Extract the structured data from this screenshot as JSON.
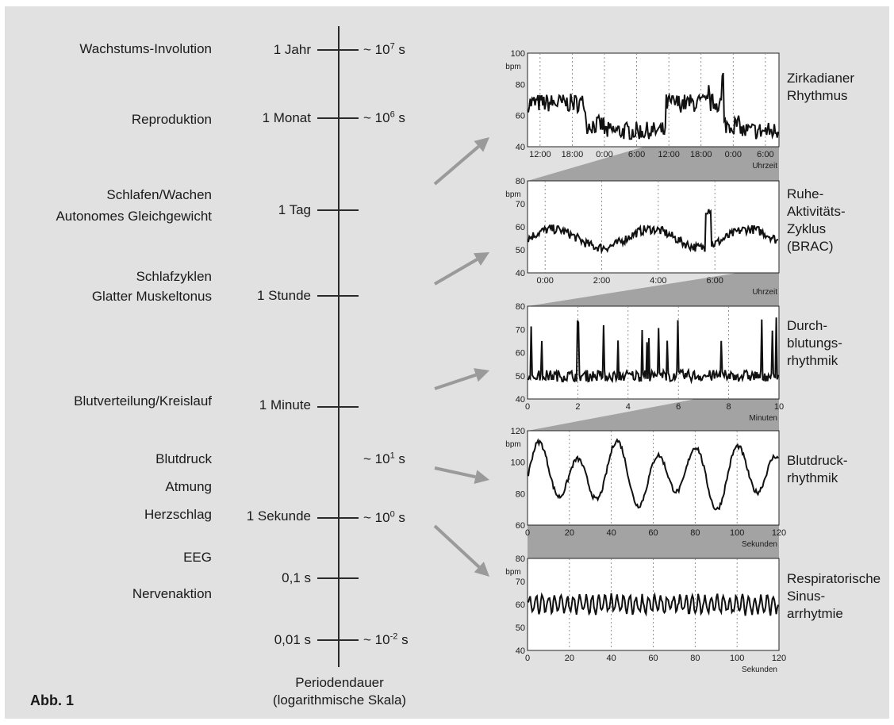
{
  "left_labels": [
    {
      "id": "wachstum",
      "lines": [
        "Wachstums-Involution"
      ]
    },
    {
      "id": "reproduktion",
      "lines": [
        "Reproduktion"
      ]
    },
    {
      "id": "schlafen",
      "lines": [
        "Schlafen/Wachen",
        "Autonomes Gleichgewicht"
      ]
    },
    {
      "id": "schlafzyklen",
      "lines": [
        "Schlafzyklen",
        "Glatter Muskeltonus"
      ]
    },
    {
      "id": "blutverteilung",
      "lines": [
        "Blutverteilung/Kreislauf"
      ]
    },
    {
      "id": "blutdruck",
      "lines": [
        "Blutdruck"
      ]
    },
    {
      "id": "atmung",
      "lines": [
        "Atmung"
      ]
    },
    {
      "id": "herzschlag",
      "lines": [
        "Herzschlag"
      ]
    },
    {
      "id": "eeg",
      "lines": [
        "EEG"
      ]
    },
    {
      "id": "nervenaktion",
      "lines": [
        "Nervenaktion"
      ]
    }
  ],
  "scale_ticks": [
    {
      "label": "1 Jahr",
      "power_base": "~ 10",
      "power_exp": "7",
      "power_unit": " s"
    },
    {
      "label": "1 Monat",
      "power_base": "~ 10",
      "power_exp": "6",
      "power_unit": " s"
    },
    {
      "label": "1 Tag",
      "power_base": "",
      "power_exp": "",
      "power_unit": ""
    },
    {
      "label": "1 Stunde",
      "power_base": "",
      "power_exp": "",
      "power_unit": ""
    },
    {
      "label": "1 Minute",
      "power_base": "",
      "power_exp": "",
      "power_unit": ""
    },
    {
      "label": "",
      "power_base": "~ 10",
      "power_exp": "1",
      "power_unit": " s"
    },
    {
      "label": "1 Sekunde",
      "power_base": "~ 10",
      "power_exp": "0",
      "power_unit": " s"
    },
    {
      "label": "0,1 s",
      "power_base": "",
      "power_exp": "",
      "power_unit": ""
    },
    {
      "label": "0,01 s",
      "power_base": "~ 10",
      "power_exp": "-2",
      "power_unit": " s"
    }
  ],
  "axis_caption": {
    "line1": "Periodendauer",
    "line2": "(logarithmische Skala)"
  },
  "figure_label": "Abb. 1",
  "colors": {
    "panel": "#e1e1e1",
    "plot_bg": "#ffffff",
    "trace": "#111111",
    "arrow": "#9a9a9a",
    "zoom_band": "#a3a3a3"
  },
  "charts": [
    {
      "id": "zirkadian",
      "ylabel": "bpm",
      "ylim": [
        40,
        100
      ],
      "yticks": [
        "40",
        "60",
        "80",
        "100"
      ],
      "xticks": [
        "12:00",
        "18:00",
        "0:00",
        "6:00",
        "12:00",
        "18:00",
        "0:00",
        "6:00"
      ],
      "xlabel": "Uhrzeit",
      "caption": [
        "Zirkadianer",
        "Rhythmus"
      ]
    },
    {
      "id": "brac",
      "ylabel": "bpm",
      "ylim": [
        40,
        80
      ],
      "yticks": [
        "40",
        "50",
        "60",
        "70",
        "80"
      ],
      "xticks": [
        "0:00",
        "2:00",
        "4:00",
        "6:00"
      ],
      "xlabel": "Uhrzeit",
      "caption": [
        "Ruhe-",
        "Aktivitäts-",
        "Zyklus",
        "(BRAC)"
      ]
    },
    {
      "id": "durchblutung",
      "ylabel": "",
      "ylim": [
        40,
        80
      ],
      "yticks": [
        "40",
        "50",
        "60",
        "70",
        "80"
      ],
      "xticks": [
        "0",
        "2",
        "4",
        "6",
        "8",
        "10"
      ],
      "xlabel": "Minuten",
      "caption": [
        "Durch-",
        "blutungs-",
        "rhythmik"
      ]
    },
    {
      "id": "blutdruck",
      "ylabel": "bpm",
      "ylim": [
        60,
        120
      ],
      "yticks": [
        "60",
        "80",
        "100",
        "120"
      ],
      "xticks": [
        "0",
        "20",
        "40",
        "60",
        "80",
        "100",
        "120"
      ],
      "xlabel": "Sekunden",
      "caption": [
        "Blutdruck-",
        "rhythmik"
      ]
    },
    {
      "id": "rsa",
      "ylabel": "bpm",
      "ylim": [
        40,
        80
      ],
      "yticks": [
        "40",
        "50",
        "60",
        "70",
        "80"
      ],
      "xticks": [
        "0",
        "20",
        "40",
        "60",
        "80",
        "100",
        "120"
      ],
      "xlabel": "Sekunden",
      "caption": [
        "Respiratorische",
        "Sinus-",
        "arrhytmie"
      ]
    }
  ]
}
